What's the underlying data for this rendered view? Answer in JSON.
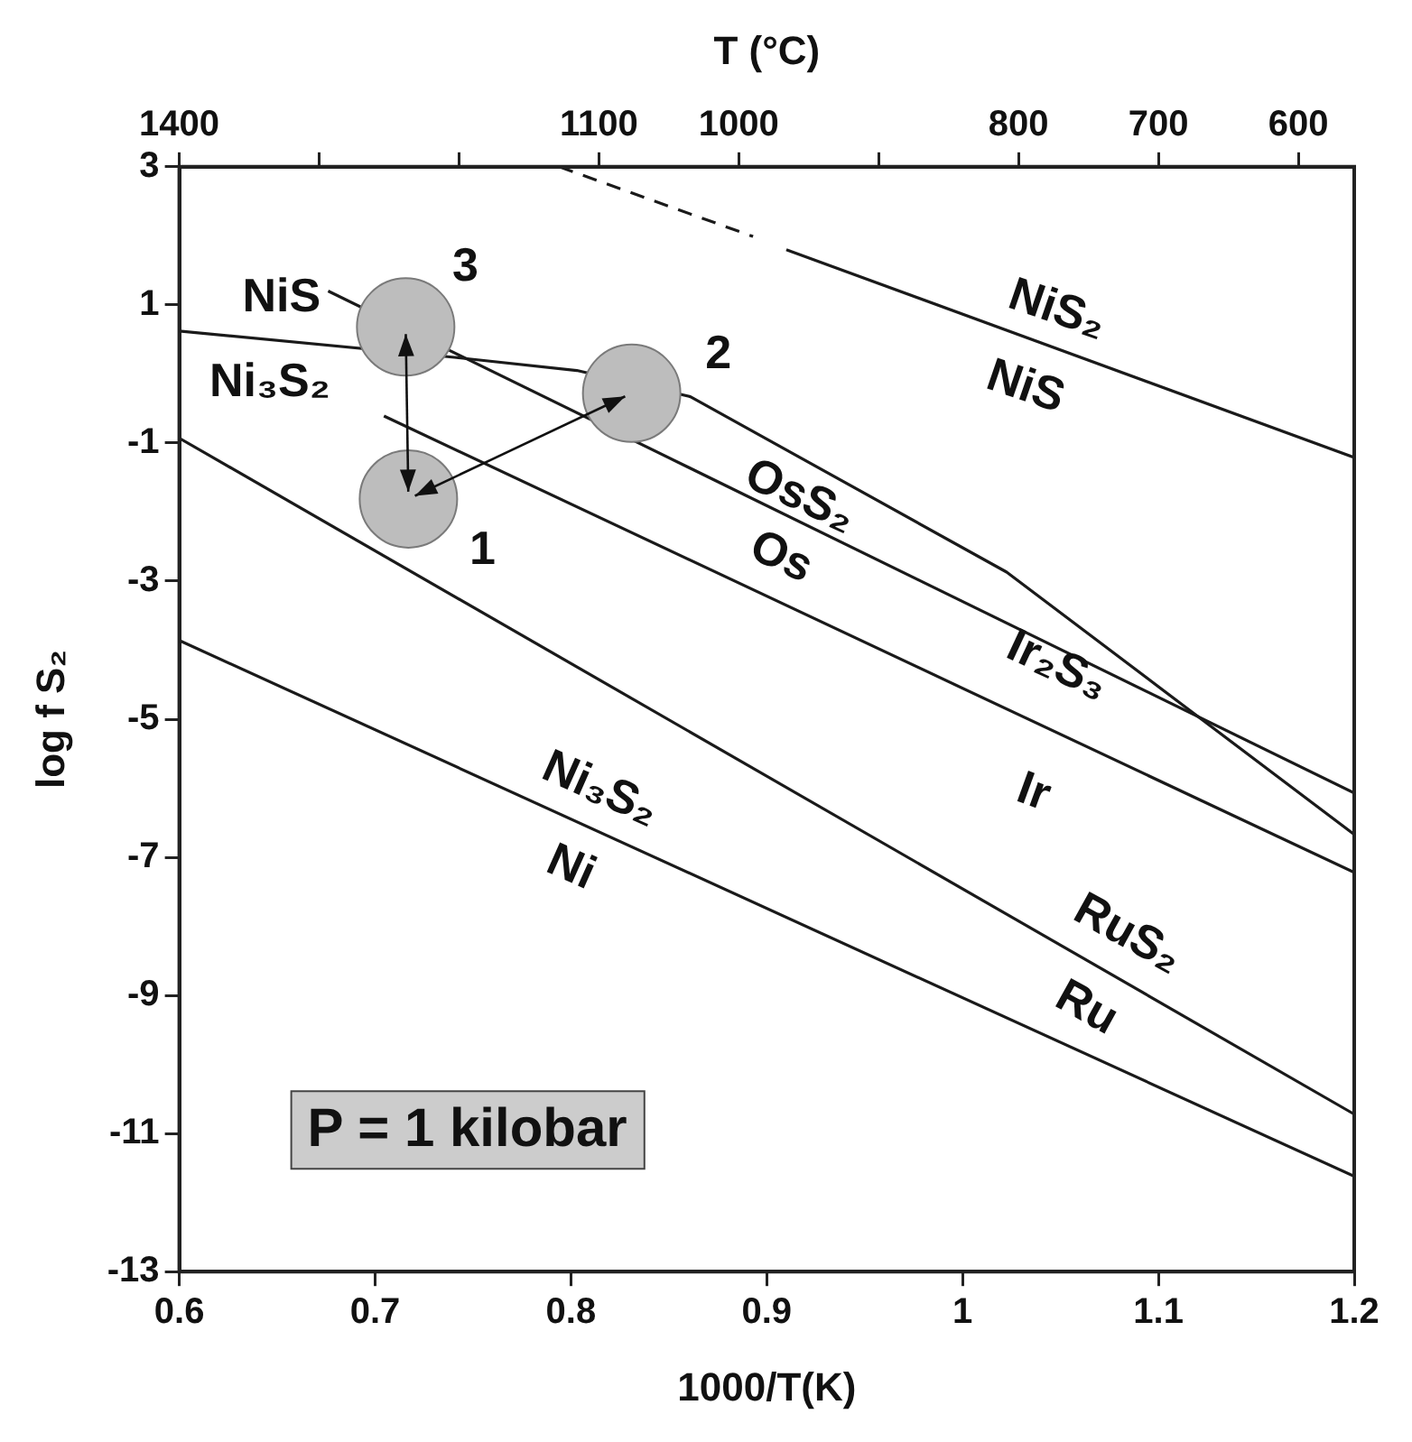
{
  "chart_data": {
    "type": "line",
    "xlabel": "1000/T(K)",
    "ylabel": "log f S₂",
    "x2label": "T (°C)",
    "xlim": [
      0.6,
      1.2
    ],
    "xticks": [
      0.6,
      0.7,
      0.8,
      0.9,
      1,
      1.1,
      1.2
    ],
    "ylim": [
      -13,
      3
    ],
    "yticks": [
      -13,
      -11,
      -9,
      -7,
      -5,
      -3,
      -1,
      1,
      3
    ],
    "x2lim": [
      1400,
      560
    ],
    "x2ticks": [
      1400,
      {
        "value": 1300,
        "label": null
      },
      {
        "value": 1200,
        "label": null
      },
      1100,
      1000,
      {
        "value": 900,
        "label": null
      },
      800,
      700,
      600
    ],
    "grid": false,
    "legend": false,
    "marker": "none",
    "series": [
      {
        "line_style": "dashed",
        "color": "#1a1a1a",
        "x": [
          0.794,
          0.893
        ],
        "values": [
          3,
          1.99
        ]
      },
      {
        "color": "#1a1a1a",
        "x": [
          0.91,
          1.2
        ],
        "values": [
          1.8,
          -1.21
        ]
      },
      {
        "color": "#1a1a1a",
        "x": [
          0.6,
          0.7405,
          0.803,
          0.861,
          1.0225,
          1.2
        ],
        "values": [
          0.62,
          0.24,
          0.05,
          -0.33,
          -2.87,
          -6.67
        ]
      },
      {
        "color": "#1a1a1a",
        "x": [
          0.676,
          1.2
        ],
        "values": [
          1.2,
          -6.07
        ]
      },
      {
        "color": "#1a1a1a",
        "x": [
          0.7045,
          1.2
        ],
        "values": [
          -0.61,
          -7.22
        ]
      },
      {
        "color": "#1a1a1a",
        "x": [
          0.6,
          1.2
        ],
        "values": [
          -0.93,
          -10.72
        ]
      },
      {
        "color": "#1a1a1a",
        "x": [
          0.6,
          1.2
        ],
        "values": [
          -3.86,
          -11.62
        ]
      },
      {
        "type": "scatter",
        "marker": "circle",
        "color": "#bdbdbd",
        "x": [
          0.717,
          0.831,
          0.7156
        ],
        "values": [
          -1.81,
          -0.28,
          0.68
        ]
      }
    ],
    "annotations": [
      {
        "text": "1",
        "x": 0.717,
        "y": -1.81
      },
      {
        "text": "2",
        "x": 0.831,
        "y": -0.28
      },
      {
        "text": "3",
        "x": 0.7156,
        "y": 0.68
      },
      "NiS",
      "Ni₃S₂",
      "NiS₂",
      "NiS",
      "OsS₂",
      "Os",
      "Ir₂S₃",
      "Ir",
      "Ni₃S₂",
      "Ni",
      "RuS₂",
      "Ru",
      "P = 1 kilobar"
    ]
  }
}
